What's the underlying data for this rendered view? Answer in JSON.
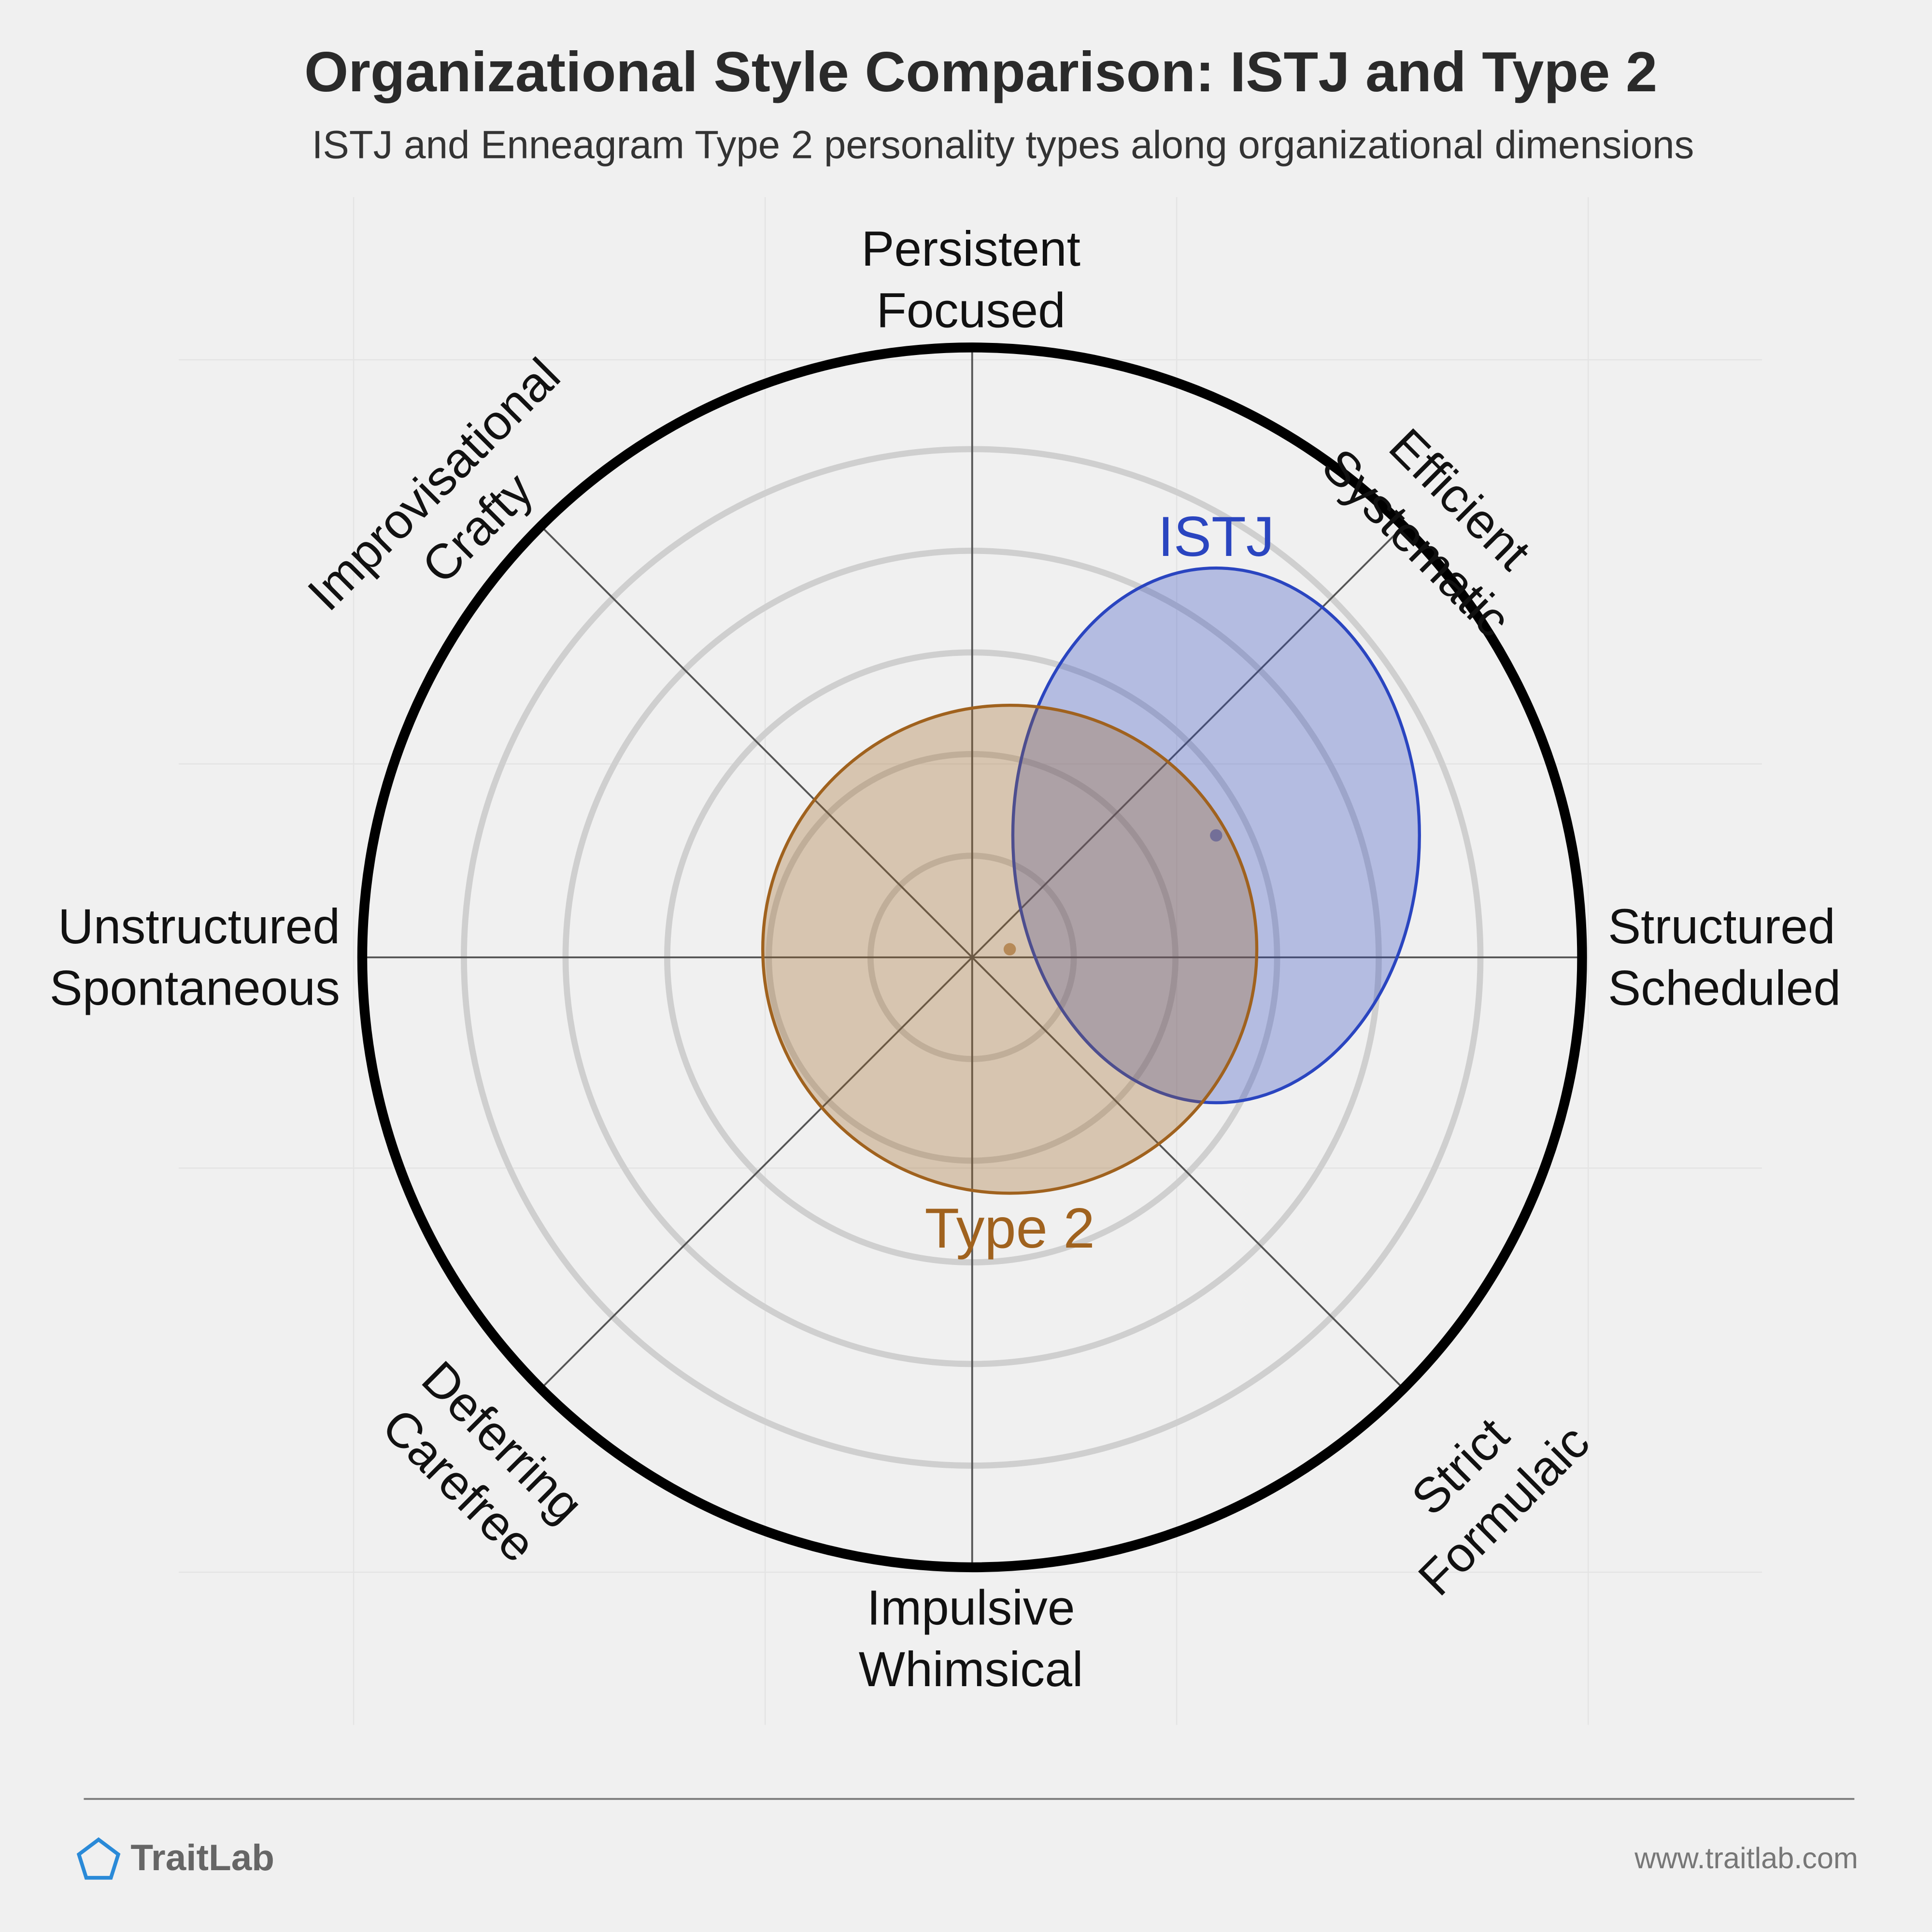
{
  "chart_data": {
    "type": "polar-ellipse",
    "title": "Organizational Style Comparison: ISTJ and Type 2",
    "subtitle": "ISTJ and Enneagram Type 2 personality types along organizational dimensions",
    "rlim": [
      0,
      6
    ],
    "rticks": [
      1,
      2,
      3,
      4,
      5
    ],
    "axes": [
      {
        "lines": [
          "Structured",
          "Scheduled"
        ]
      },
      {
        "lines": [
          "Efficient",
          "Systematic"
        ]
      },
      {
        "lines": [
          "Persistent",
          "Focused"
        ]
      },
      {
        "lines": [
          "Improvisational",
          "Crafty"
        ]
      },
      {
        "lines": [
          "Unstructured",
          "Spontaneous"
        ]
      },
      {
        "lines": [
          "Deferring",
          "Carefree"
        ]
      },
      {
        "lines": [
          "Impulsive",
          "Whimsical"
        ]
      },
      {
        "lines": [
          "Strict",
          "Formulaic"
        ]
      }
    ],
    "series": [
      {
        "name": "ISTJ",
        "color": "#2a45c0",
        "x": 2.4,
        "y": 1.2,
        "rx": 2.0,
        "ry": 2.63
      },
      {
        "name": "Type 2",
        "color": "#a0621e",
        "x": 0.37,
        "y": 0.08,
        "rx": 2.43,
        "ry": 2.4
      }
    ]
  },
  "footer": {
    "brand": "TraitLab",
    "url": "www.traitlab.com"
  }
}
